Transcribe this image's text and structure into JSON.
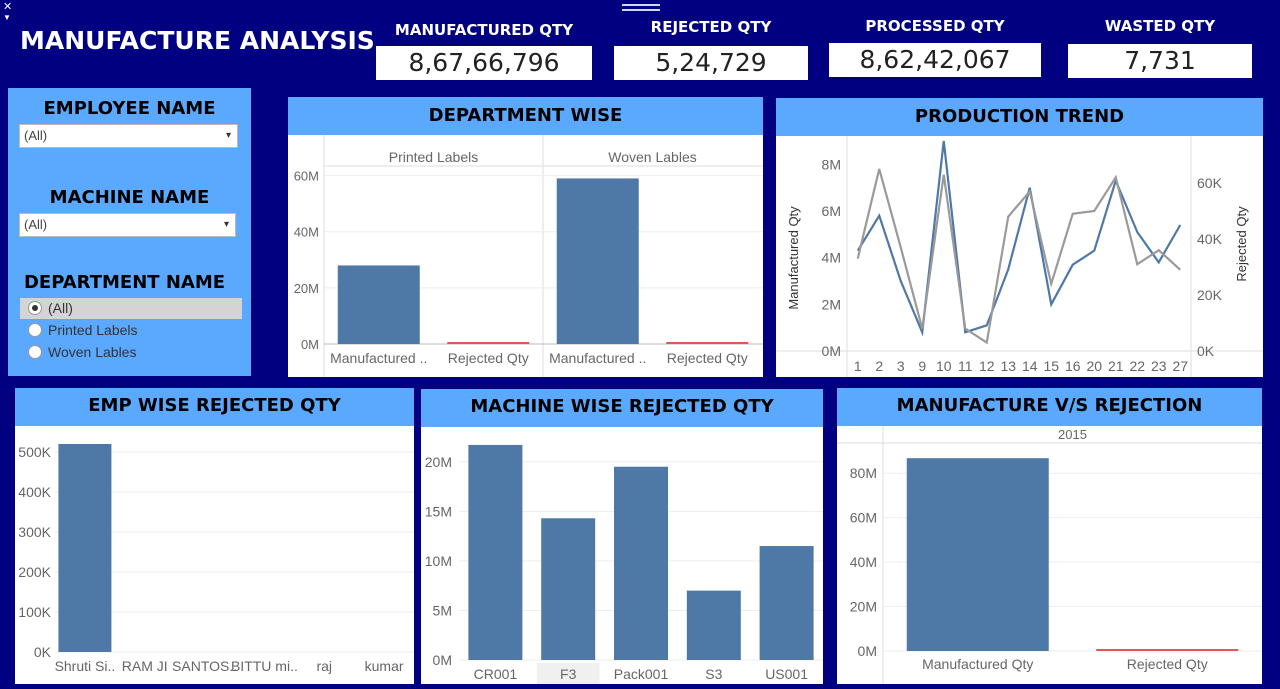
{
  "header": {
    "title": "MANUFACTURE ANALYSIS",
    "kpis": [
      {
        "label": "MANUFACTURED QTY",
        "value": "8,67,66,796"
      },
      {
        "label": "REJECTED QTY",
        "value": "5,24,729"
      },
      {
        "label": "PROCESSED QTY",
        "value": "8,62,42,067"
      },
      {
        "label": "WASTED QTY",
        "value": "7,731"
      }
    ]
  },
  "filters": {
    "employee": {
      "title": "EMPLOYEE NAME",
      "value": "(All)"
    },
    "machine": {
      "title": "MACHINE NAME",
      "value": "(All)"
    },
    "department": {
      "title": "DEPARTMENT NAME",
      "options": [
        "(All)",
        "Printed Labels",
        "Woven Lables"
      ],
      "selected": "(All)"
    }
  },
  "panels": {
    "dept": "DEPARTMENT WISE",
    "trend": "PRODUCTION TREND",
    "emp": "EMP WISE REJECTED QTY",
    "machine": "MACHINE WISE REJECTED QTY",
    "mvr": "MANUFACTURE V/S REJECTION"
  },
  "colors": {
    "bar": "#4e79a7",
    "reject": "#e15759",
    "background": "#000080",
    "header": "#5aa9ff"
  },
  "chart_data": [
    {
      "id": "dept",
      "type": "bar",
      "facets": [
        "Printed Labels",
        "Woven Lables"
      ],
      "categories": [
        "Manufactured ..",
        "Rejected Qty"
      ],
      "series": [
        {
          "facet": "Printed Labels",
          "values": [
            28000000,
            0
          ]
        },
        {
          "facet": "Woven Lables",
          "values": [
            59000000,
            500000
          ]
        }
      ],
      "yticks": [
        "60M",
        "40M",
        "20M",
        "0M"
      ],
      "ylim": [
        0,
        62000000
      ]
    },
    {
      "id": "trend",
      "type": "line",
      "x": [
        "1",
        "2",
        "3",
        "9",
        "10",
        "11",
        "12",
        "13",
        "14",
        "15",
        "16",
        "20",
        "21",
        "22",
        "23",
        "27"
      ],
      "ylabel": "Manufactured Qty",
      "y2label": "Rejected Qty",
      "yticks": [
        "8M",
        "6M",
        "4M",
        "2M",
        "0M"
      ],
      "y2ticks": [
        "60K",
        "40K",
        "20K",
        "0K"
      ],
      "ylim": [
        0,
        9000000
      ],
      "y2lim": [
        0,
        75000
      ],
      "series": [
        {
          "axis": "left",
          "color": "#4e79a7",
          "values": [
            4300000,
            5800000,
            3000000,
            800000,
            9000000,
            800000,
            1100000,
            3500000,
            7000000,
            2000000,
            3700000,
            4300000,
            7300000,
            5100000,
            3800000,
            5400000
          ]
        },
        {
          "axis": "right",
          "color": "#9a9a9a",
          "values": [
            33000,
            65000,
            37000,
            8000,
            63000,
            8000,
            3000,
            48000,
            57000,
            24000,
            49000,
            50000,
            62000,
            31000,
            36000,
            29000
          ]
        }
      ]
    },
    {
      "id": "emp",
      "type": "bar",
      "categories": [
        "Shruti Si..",
        "RAM JI",
        "SANTOS..",
        "BITTU mi..",
        "raj",
        "kumar"
      ],
      "values": [
        520000,
        0,
        0,
        0,
        0,
        0
      ],
      "yticks": [
        "500K",
        "400K",
        "300K",
        "200K",
        "100K",
        "0K"
      ],
      "ylim": [
        0,
        540000
      ]
    },
    {
      "id": "machine",
      "type": "bar",
      "categories": [
        "CR001",
        "F3",
        "Pack001",
        "S3",
        "US001"
      ],
      "values": [
        21700000,
        14300000,
        19500000,
        7000000,
        11500000
      ],
      "yticks": [
        "20M",
        "15M",
        "10M",
        "5M",
        "0M"
      ],
      "ylim": [
        0,
        22500000
      ]
    },
    {
      "id": "mvr",
      "type": "bar",
      "facet": "2015",
      "categories": [
        "Manufactured Qty",
        "Rejected Qty"
      ],
      "values": [
        86766796,
        524729
      ],
      "yticks": [
        "80M",
        "60M",
        "40M",
        "20M",
        "0M"
      ],
      "ylim": [
        0,
        90000000
      ]
    }
  ]
}
